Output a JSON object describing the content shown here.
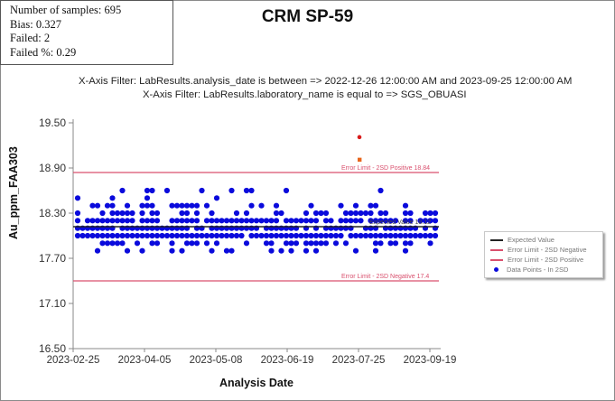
{
  "stats": {
    "samples": "Number of samples: 695",
    "bias": "Bias: 0.327",
    "failed": "Failed: 2",
    "failed_pct": "Failed %: 0.29"
  },
  "title": "CRM SP-59",
  "filters": [
    "X-Axis Filter: LabResults.analysis_date is between => 2022-12-26 12:00:00 AM and 2023-09-25 12:00:00 AM",
    "X-Axis Filter: LabResults.laboratory_name is equal to => SGS_OBUASI"
  ],
  "colors": {
    "points": "#0a0adc",
    "limit": "#d9506e",
    "expected": "#222222",
    "fail_red": "#d81a1a",
    "fail_orange": "#e8661c",
    "axis": "#888888"
  },
  "chart_data": {
    "type": "scatter",
    "title": "CRM SP-59",
    "xlabel": "Analysis Date",
    "ylabel": "Au_ppm_FAA303",
    "x_ticks": [
      "2023-02-25",
      "2023-04-05",
      "2023-05-08",
      "2023-06-19",
      "2023-07-25",
      "2023-09-19"
    ],
    "y_ticks": [
      "19.50",
      "18.90",
      "18.30",
      "17.70",
      "17.10",
      "16.50"
    ],
    "ylim": [
      16.5,
      19.5
    ],
    "grid": false,
    "legend_position": "right",
    "legend": [
      "Expected Value",
      "Error Limit - 2SD Negative",
      "Error Limit - 2SD Positive",
      "Data Points - In 2SD"
    ],
    "reference_lines": [
      {
        "name": "Expected Value",
        "y": 18.12,
        "label": "Expected Value 18.12"
      },
      {
        "name": "Error Limit - 2SD Positive",
        "y": 18.84,
        "label": "Error Limit - 2SD Positive 18.84"
      },
      {
        "name": "Error Limit - 2SD Negative",
        "y": 17.4,
        "label": "Error Limit - 2SD Negative 17.4"
      }
    ],
    "n_samples": 695,
    "failed_points": [
      {
        "x": "2023-07-23",
        "y": 19.31,
        "color": "red"
      },
      {
        "x": "2023-07-23",
        "y": 19.01,
        "color": "orange"
      }
    ],
    "in_2sd_levels": [
      18.6,
      18.5,
      18.4,
      18.3,
      18.2,
      18.1,
      18.0,
      17.9,
      17.8
    ],
    "in_2sd_range": [
      17.8,
      18.7
    ]
  }
}
